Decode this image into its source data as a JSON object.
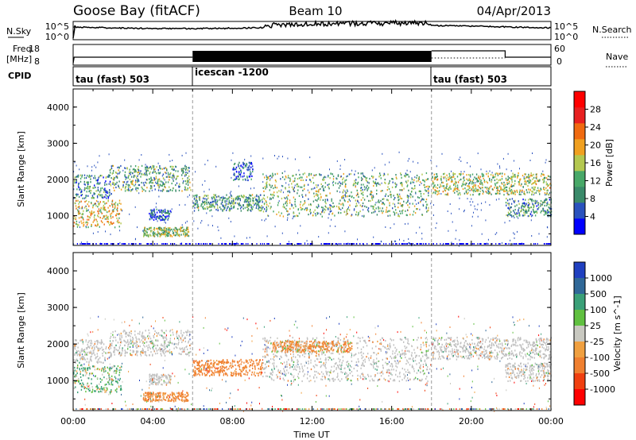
{
  "header": {
    "station": "Goose Bay (fitACF)",
    "beam": "Beam 10",
    "date": "04/Apr/2013"
  },
  "strips": {
    "noise_left_label": "N.Sky",
    "noise_right_label": "N.Search",
    "noise_ticks": [
      "10^5",
      "10^0"
    ],
    "freq_label_line1": "Freq.",
    "freq_label_line2": "[MHz]",
    "freq_ticks": [
      "18",
      "8"
    ],
    "nave_label": "Nave",
    "nave_ticks": [
      "60",
      "0"
    ],
    "cpid_label": "CPID",
    "cpid_segments": [
      "tau (fast) 503",
      "icescan -1200",
      "tau (fast) 503"
    ]
  },
  "colors": {
    "power": [
      "#0000ff",
      "#2a52be",
      "#3a8a6a",
      "#48a868",
      "#b4c850",
      "#f0a020",
      "#f06a10",
      "#e82020",
      "#ff0000"
    ],
    "velocity": [
      "#2040c0",
      "#306898",
      "#3aa078",
      "#60c040",
      "#c8c8c0",
      "#f0a040",
      "#f08030",
      "#f04010",
      "#ff0000"
    ],
    "ground_scatter": "#c0c0c0"
  },
  "chart_data": [
    {
      "type": "heatmap",
      "title": "Power",
      "xlabel": "",
      "ylabel": "Slant Range [km]",
      "colorbar_label": "Power [dB]",
      "colorbar_ticks": [
        "28",
        "24",
        "20",
        "16",
        "12",
        "8",
        "4"
      ],
      "y_ticks": [
        "4000",
        "3000",
        "2000",
        "1000"
      ],
      "ylim": [
        180,
        4500
      ],
      "xlim": [
        0,
        24
      ],
      "cpid_change_hours": [
        6,
        18
      ],
      "blobs": [
        {
          "t0": 0.0,
          "t1": 2.4,
          "r0": 700,
          "r1": 1450,
          "power": 18
        },
        {
          "t0": 0.0,
          "t1": 1.9,
          "r0": 1500,
          "r1": 2150,
          "power": 9
        },
        {
          "t0": 1.8,
          "t1": 5.9,
          "r0": 1700,
          "r1": 2400,
          "power": 12
        },
        {
          "t0": 3.5,
          "t1": 5.8,
          "r0": 450,
          "r1": 700,
          "power": 14
        },
        {
          "t0": 3.8,
          "t1": 4.9,
          "r0": 900,
          "r1": 1200,
          "power": 7
        },
        {
          "t0": 6.0,
          "t1": 9.5,
          "r0": 1150,
          "r1": 1600,
          "power": 11
        },
        {
          "t0": 8.0,
          "t1": 9.0,
          "r0": 2000,
          "r1": 2500,
          "power": 6
        },
        {
          "t0": 9.5,
          "t1": 17.9,
          "r0": 1000,
          "r1": 2200,
          "power": 13
        },
        {
          "t0": 18.0,
          "t1": 24.0,
          "r0": 1600,
          "r1": 2200,
          "power": 15
        },
        {
          "t0": 21.7,
          "t1": 24.0,
          "r0": 1000,
          "r1": 1500,
          "power": 10
        }
      ]
    },
    {
      "type": "heatmap",
      "title": "Velocity",
      "xlabel": "Time UT",
      "ylabel": "Slant Range [km]",
      "colorbar_label": "Velocity [m s^-1]",
      "colorbar_ticks": [
        "1000",
        "500",
        "100",
        "25",
        "-25",
        "-100",
        "-500",
        "-1000"
      ],
      "y_ticks": [
        "4000",
        "3000",
        "2000",
        "1000"
      ],
      "x_ticks": [
        "00:00",
        "04:00",
        "08:00",
        "12:00",
        "16:00",
        "20:00",
        "00:00"
      ],
      "ylim": [
        180,
        4500
      ],
      "xlim": [
        0,
        24
      ],
      "cpid_change_hours": [
        6,
        18
      ],
      "blobs": [
        {
          "t0": 0.0,
          "t1": 2.4,
          "r0": 700,
          "r1": 1450,
          "velocity": 120
        },
        {
          "t0": 0.0,
          "t1": 1.9,
          "r0": 1500,
          "r1": 2150,
          "velocity": 0
        },
        {
          "t0": 1.8,
          "t1": 5.9,
          "r0": 1700,
          "r1": 2400,
          "velocity": 0
        },
        {
          "t0": 3.5,
          "t1": 5.8,
          "r0": 450,
          "r1": 700,
          "velocity": -200
        },
        {
          "t0": 3.8,
          "t1": 4.9,
          "r0": 900,
          "r1": 1200,
          "velocity": 0
        },
        {
          "t0": 6.0,
          "t1": 9.5,
          "r0": 1150,
          "r1": 1600,
          "velocity": -250
        },
        {
          "t0": 9.5,
          "t1": 17.9,
          "r0": 1000,
          "r1": 2200,
          "velocity": 0
        },
        {
          "t0": 10.0,
          "t1": 14.0,
          "r0": 1800,
          "r1": 2100,
          "velocity": -150
        },
        {
          "t0": 18.0,
          "t1": 24.0,
          "r0": 1600,
          "r1": 2200,
          "velocity": 0
        },
        {
          "t0": 21.7,
          "t1": 24.0,
          "r0": 1000,
          "r1": 1500,
          "velocity": 0
        }
      ]
    }
  ]
}
